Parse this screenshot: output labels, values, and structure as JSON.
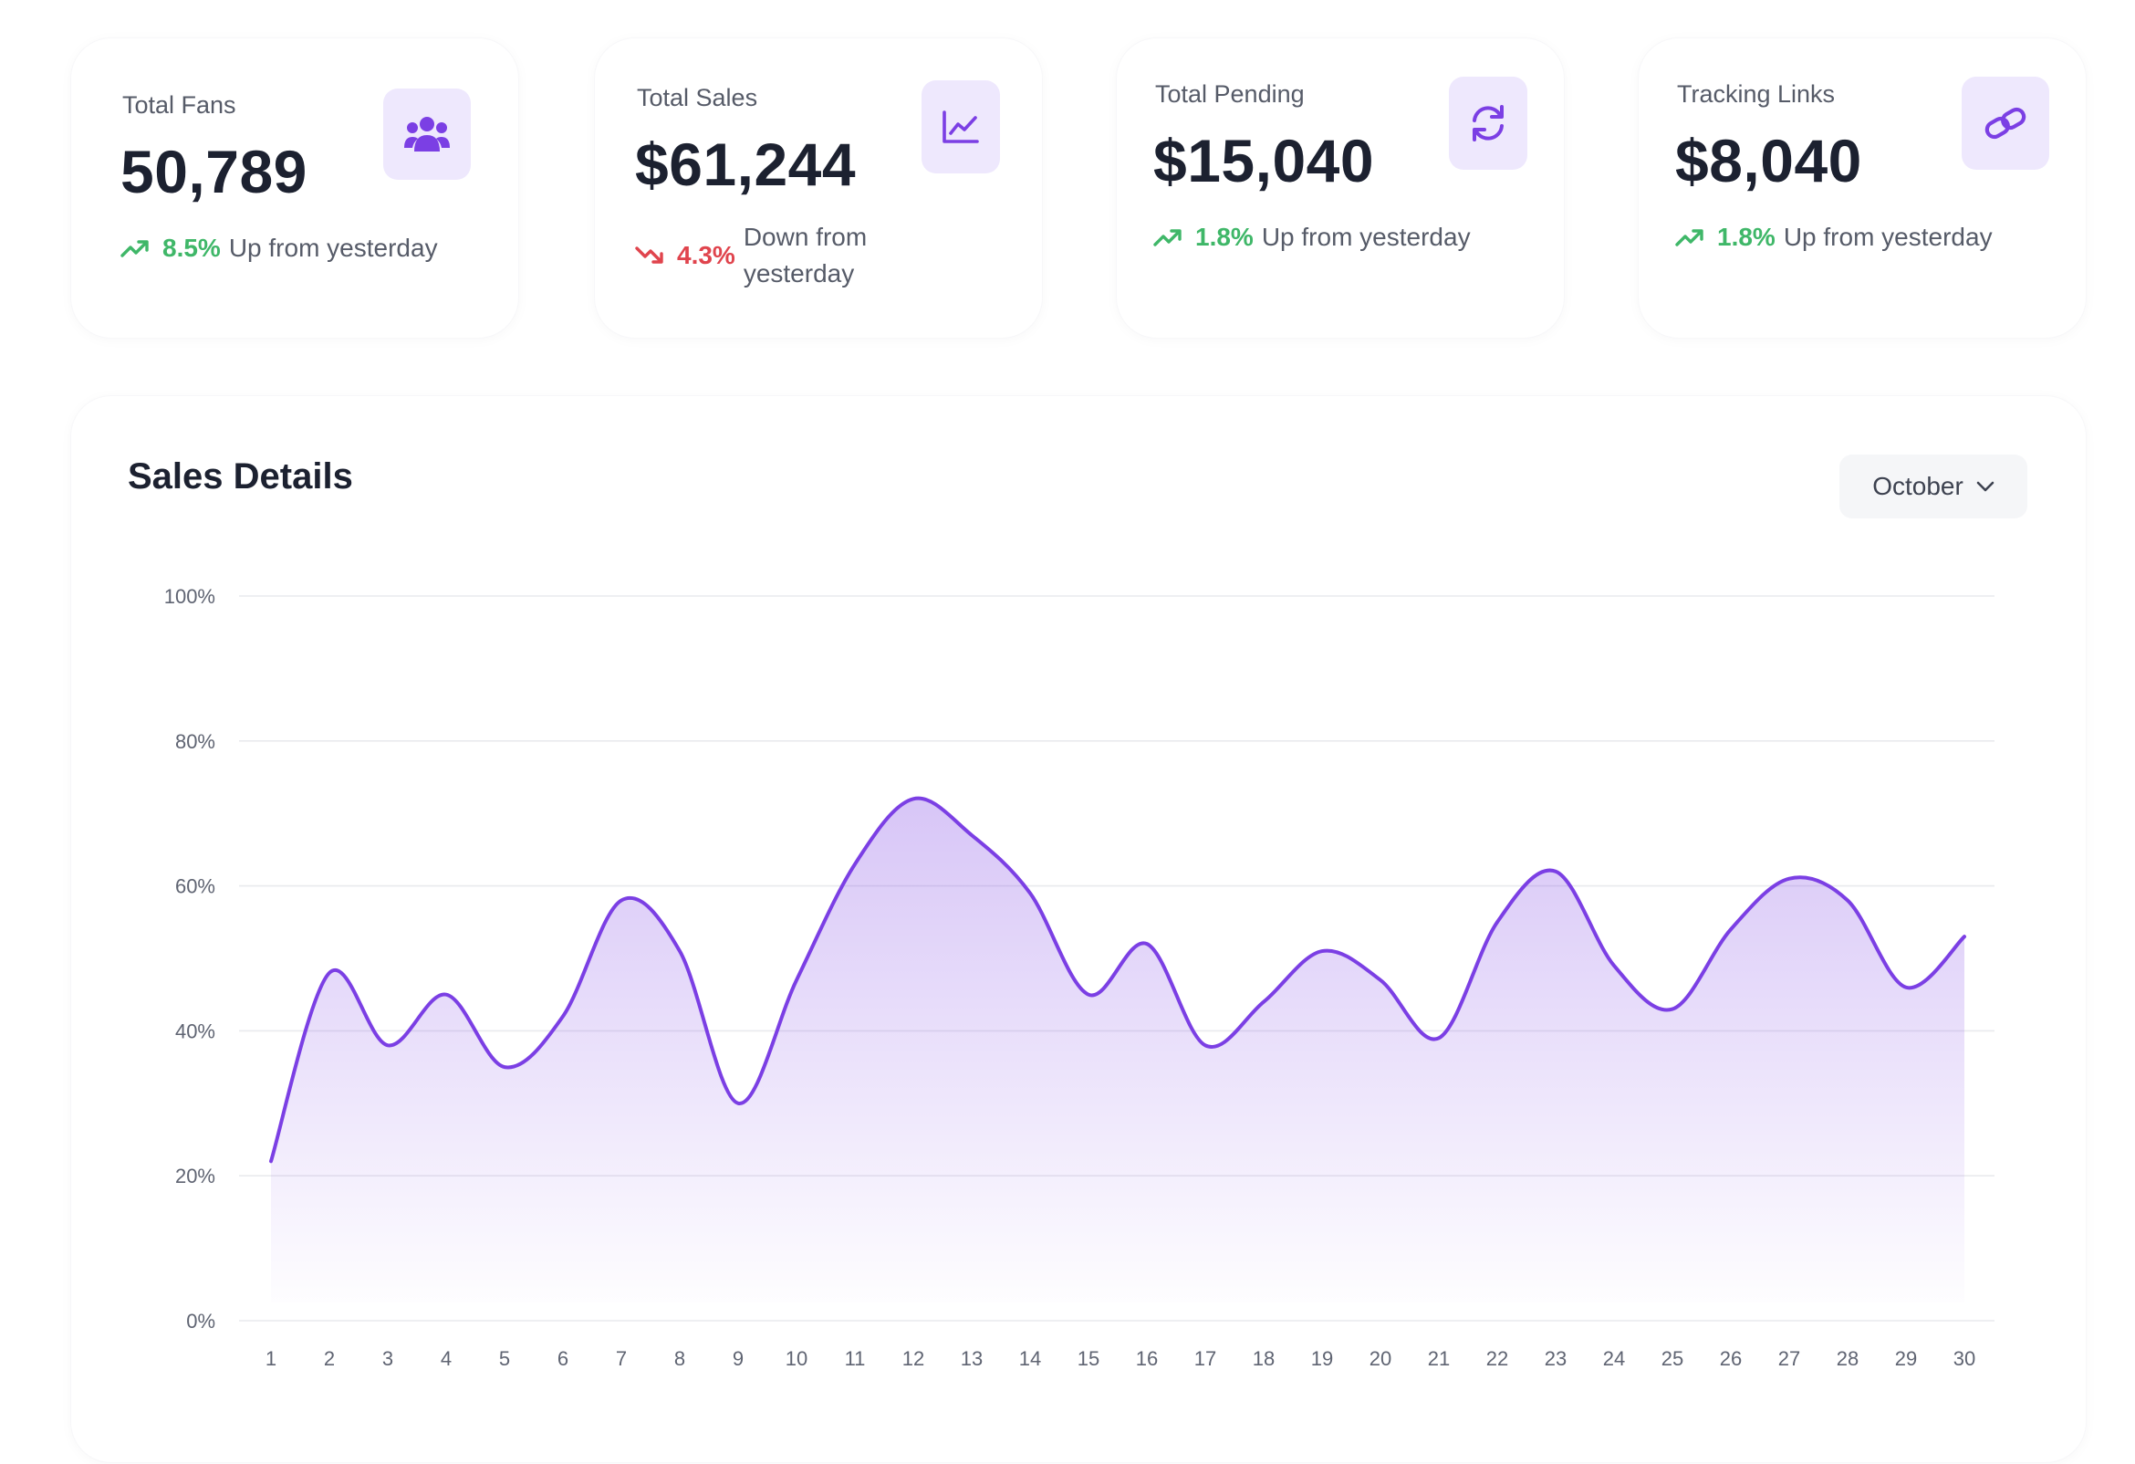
{
  "stats": [
    {
      "title": "Total Fans",
      "value": "50,789",
      "trend": "up",
      "percent": "8.5%",
      "desc": "Up from yesterday",
      "icon": "users-icon"
    },
    {
      "title": "Total Sales",
      "value": "$61,244",
      "trend": "down",
      "percent": "4.3%",
      "desc": "Down from yesterday",
      "icon": "line-chart-icon"
    },
    {
      "title": "Total Pending",
      "value": "$15,040",
      "trend": "up",
      "percent": "1.8%",
      "desc": "Up from yesterday",
      "icon": "refresh-icon"
    },
    {
      "title": "Tracking Links",
      "value": "$8,040",
      "trend": "up",
      "percent": "1.8%",
      "desc": "Up from yesterday",
      "icon": "link-icon"
    }
  ],
  "sales": {
    "title": "Sales Details",
    "month_selected": "October"
  },
  "colors": {
    "accent": "#7b3fe4",
    "icon_bg": "#eee8fd",
    "up": "#3fb768",
    "down": "#e0444d"
  },
  "chart_data": {
    "type": "area",
    "x": [
      1,
      2,
      3,
      4,
      5,
      6,
      7,
      8,
      9,
      10,
      11,
      12,
      13,
      14,
      15,
      16,
      17,
      18,
      19,
      20,
      21,
      22,
      23,
      24,
      25,
      26,
      27,
      28,
      29,
      30
    ],
    "series": [
      {
        "values": [
          22,
          48,
          38,
          45,
          35,
          42,
          58,
          51,
          30,
          47,
          63,
          72,
          67,
          59,
          45,
          52,
          38,
          44,
          51,
          47,
          39,
          55,
          62,
          49,
          43,
          54,
          61,
          58,
          46,
          53
        ]
      }
    ],
    "ylim": [
      0,
      100
    ],
    "yticks": [
      "0%",
      "20%",
      "40%",
      "60%",
      "80%",
      "100%"
    ],
    "xticks": [
      "1",
      "2",
      "3",
      "4",
      "5",
      "6",
      "7",
      "8",
      "9",
      "10",
      "11",
      "12",
      "13",
      "14",
      "15",
      "16",
      "17",
      "18",
      "19",
      "20",
      "21",
      "22",
      "23",
      "24",
      "25",
      "26",
      "27",
      "28",
      "29",
      "30"
    ],
    "grid": true,
    "xlabel": "",
    "ylabel": ""
  }
}
